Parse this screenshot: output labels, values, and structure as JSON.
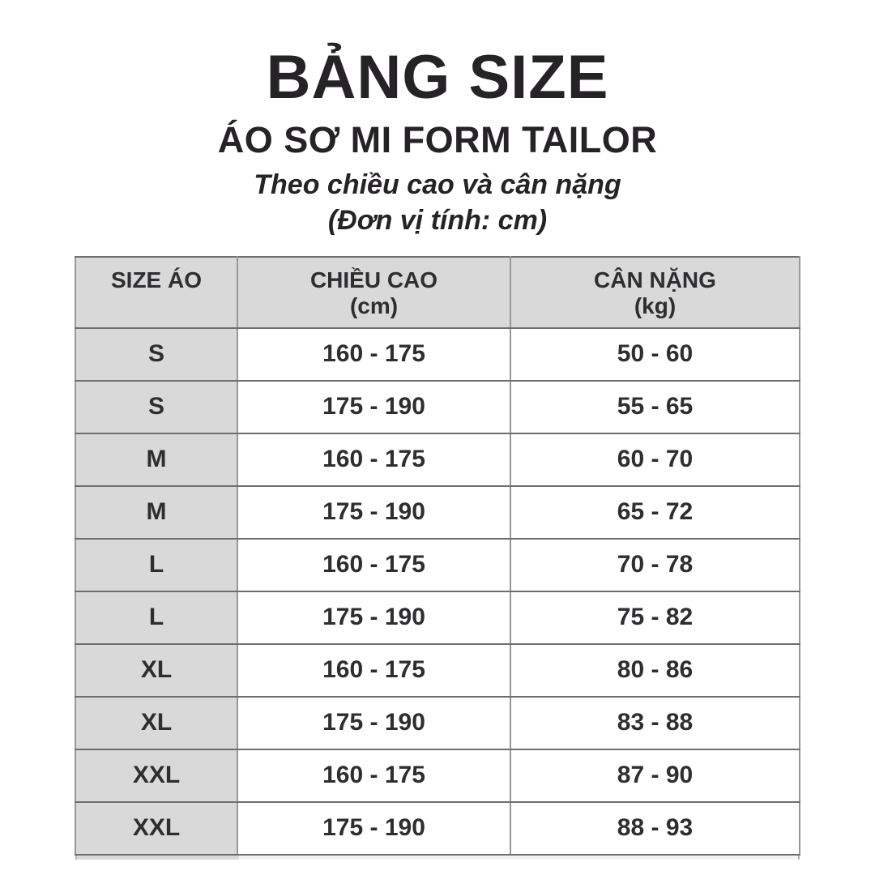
{
  "header": {
    "title": "BẢNG SIZE",
    "product": "ÁO SƠ MI FORM TAILOR",
    "note1": "Theo chiều cao và cân nặng",
    "note2": "(Đơn vị tính: cm)"
  },
  "table": {
    "headers": [
      {
        "label": "SIZE ÁO",
        "unit": ""
      },
      {
        "label": "CHIỀU CAO",
        "unit": "(cm)"
      },
      {
        "label": "CÂN NẶNG",
        "unit": "(kg)"
      }
    ],
    "rows": [
      {
        "size": "S",
        "height": "160 - 175",
        "weight": "50 - 60"
      },
      {
        "size": "S",
        "height": "175 - 190",
        "weight": "55 - 65"
      },
      {
        "size": "M",
        "height": "160 - 175",
        "weight": "60 - 70"
      },
      {
        "size": "M",
        "height": "175 - 190",
        "weight": "65 - 72"
      },
      {
        "size": "L",
        "height": "160 - 175",
        "weight": "70 - 78"
      },
      {
        "size": "L",
        "height": "175 - 190",
        "weight": "75 - 82"
      },
      {
        "size": "XL",
        "height": "160 - 175",
        "weight": "80 - 86"
      },
      {
        "size": "XL",
        "height": "175 - 190",
        "weight": "83 - 88"
      },
      {
        "size": "XXL",
        "height": "160 - 175",
        "weight": "87 - 90"
      },
      {
        "size": "XXL",
        "height": "175 - 190",
        "weight": "88 - 93"
      }
    ]
  },
  "colors": {
    "cell_gray": "#d9d9d9",
    "border_dark": "#6e6e70",
    "border_light": "#98989a",
    "text": "#2e2e30"
  },
  "chart_data": {
    "type": "table",
    "title": "BẢNG SIZE — ÁO SƠ MI FORM TAILOR (Theo chiều cao và cân nặng, Đơn vị tính: cm)",
    "columns": [
      "SIZE ÁO",
      "CHIỀU CAO (cm)",
      "CÂN NẶNG (kg)"
    ],
    "rows": [
      [
        "S",
        "160 - 175",
        "50 - 60"
      ],
      [
        "S",
        "175 - 190",
        "55 - 65"
      ],
      [
        "M",
        "160 - 175",
        "60 - 70"
      ],
      [
        "M",
        "175 - 190",
        "65 - 72"
      ],
      [
        "L",
        "160 - 175",
        "70 - 78"
      ],
      [
        "L",
        "175 - 190",
        "75 - 82"
      ],
      [
        "XL",
        "160 - 175",
        "80 - 86"
      ],
      [
        "XL",
        "175 - 190",
        "83 - 88"
      ],
      [
        "XXL",
        "160 - 175",
        "87 - 90"
      ],
      [
        "XXL",
        "175 - 190",
        "88 - 93"
      ]
    ]
  }
}
